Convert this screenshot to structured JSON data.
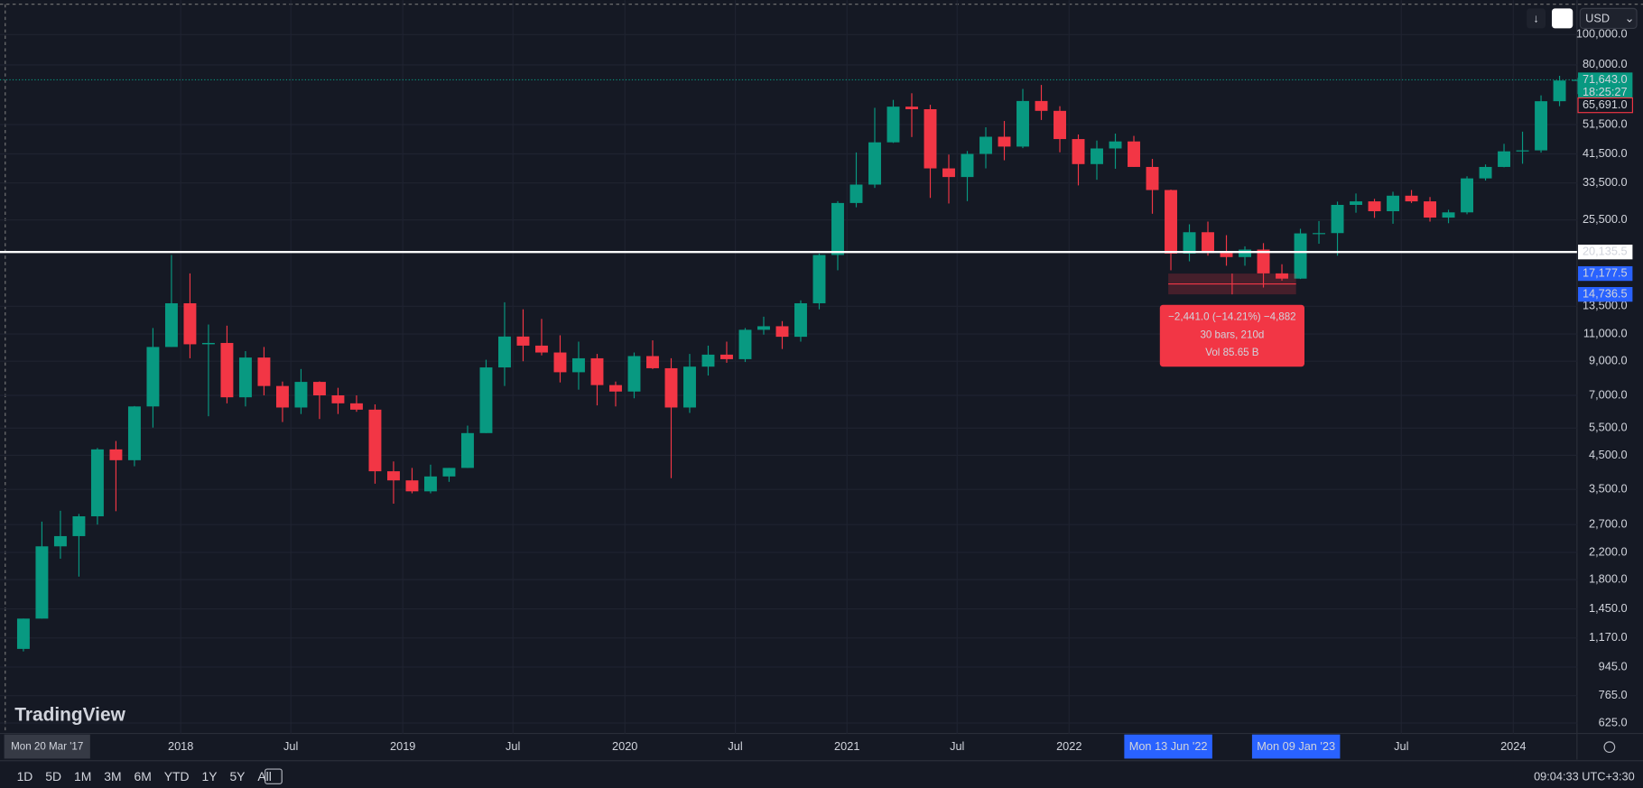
{
  "chart_data": {
    "type": "candlestick",
    "log_scale": true,
    "grid": true,
    "up_color": "#089981",
    "down_color": "#f23645",
    "x": [
      "2017-04",
      "2017-05",
      "2017-06",
      "2017-07",
      "2017-08",
      "2017-09",
      "2017-10",
      "2017-11",
      "2017-12",
      "2018-01",
      "2018-02",
      "2018-03",
      "2018-04",
      "2018-05",
      "2018-06",
      "2018-07",
      "2018-08",
      "2018-09",
      "2018-10",
      "2018-11",
      "2018-12",
      "2019-01",
      "2019-02",
      "2019-03",
      "2019-04",
      "2019-05",
      "2019-06",
      "2019-07",
      "2019-08",
      "2019-09",
      "2019-10",
      "2019-11",
      "2019-12",
      "2020-01",
      "2020-02",
      "2020-03",
      "2020-04",
      "2020-05",
      "2020-06",
      "2020-07",
      "2020-08",
      "2020-09",
      "2020-10",
      "2020-11",
      "2020-12",
      "2021-01",
      "2021-02",
      "2021-03",
      "2021-04",
      "2021-05",
      "2021-06",
      "2021-07",
      "2021-08",
      "2021-09",
      "2021-10",
      "2021-11",
      "2021-12",
      "2022-01",
      "2022-02",
      "2022-03",
      "2022-04",
      "2022-05",
      "2022-06",
      "2022-07",
      "2022-08",
      "2022-09",
      "2022-10",
      "2022-11",
      "2022-12",
      "2023-01",
      "2023-02",
      "2023-03",
      "2023-04",
      "2023-05",
      "2023-06",
      "2023-07",
      "2023-08",
      "2023-09",
      "2023-10",
      "2023-11",
      "2023-12",
      "2024-01",
      "2024-02",
      "2024-03",
      "2024-04"
    ],
    "open": [
      1080,
      1350,
      2300,
      2480,
      2870,
      4700,
      4340,
      6450,
      10000,
      13800,
      10200,
      10300,
      6900,
      9250,
      7500,
      6400,
      7730,
      7000,
      6600,
      6300,
      4000,
      3740,
      3450,
      3850,
      4100,
      5300,
      8600,
      10800,
      10100,
      9600,
      8300,
      9200,
      7550,
      7200,
      9350,
      8550,
      6400,
      8650,
      9450,
      9140,
      11350,
      11650,
      10780,
      13800,
      19700,
      28900,
      33100,
      45200,
      58800,
      57700,
      37300,
      35000,
      41500,
      47100,
      43800,
      61300,
      57000,
      46300,
      38500,
      43200,
      45500,
      37700,
      31800,
      19900,
      23300,
      20000,
      19400,
      20500,
      17200,
      16550,
      23100,
      23150,
      28500,
      29250,
      27200,
      30500,
      29250,
      25950,
      26970,
      34650,
      37700,
      42300,
      42600,
      61200,
      71300
    ],
    "high": [
      1350,
      2760,
      2990,
      2920,
      4750,
      5000,
      6470,
      11500,
      19700,
      17200,
      11800,
      11700,
      9700,
      10000,
      7750,
      8500,
      7760,
      7400,
      7000,
      6550,
      4300,
      4100,
      4200,
      4100,
      5600,
      9100,
      13900,
      13200,
      12300,
      10900,
      10400,
      9500,
      7750,
      9600,
      10500,
      9200,
      9500,
      10100,
      10400,
      11500,
      12500,
      12100,
      14100,
      19900,
      29300,
      41950,
      58300,
      61800,
      64900,
      59600,
      41300,
      42400,
      50500,
      52900,
      67000,
      69000,
      59000,
      47900,
      45800,
      48200,
      47400,
      40000,
      31900,
      24700,
      25200,
      22800,
      21000,
      21500,
      18400,
      23900,
      25300,
      29200,
      31000,
      29800,
      31400,
      31800,
      30200,
      27500,
      35200,
      38400,
      44700,
      48900,
      63900,
      73800,
      72700
    ],
    "low": [
      1060,
      1350,
      2100,
      1840,
      2700,
      2980,
      4150,
      5520,
      10000,
      9200,
      6000,
      6600,
      6450,
      7000,
      5750,
      6100,
      5880,
      6100,
      6200,
      3650,
      3150,
      3400,
      3400,
      3700,
      4100,
      5300,
      7500,
      9000,
      9400,
      7700,
      7300,
      6500,
      6450,
      6850,
      8500,
      3800,
      6150,
      8100,
      8900,
      8950,
      10950,
      9850,
      10400,
      13200,
      17600,
      28000,
      32300,
      45000,
      47000,
      30000,
      28800,
      29300,
      37300,
      39600,
      43300,
      53300,
      42000,
      32900,
      34300,
      37200,
      37700,
      26700,
      17600,
      18800,
      19600,
      18200,
      18200,
      15500,
      16300,
      16500,
      21400,
      19600,
      26900,
      25900,
      24800,
      28900,
      25200,
      24900,
      26600,
      34100,
      37600,
      38600,
      41900,
      59000,
      64500
    ],
    "close": [
      1350,
      2300,
      2480,
      2870,
      4700,
      4340,
      6450,
      10000,
      13800,
      10200,
      10300,
      6900,
      9250,
      7500,
      6400,
      7730,
      7000,
      6600,
      6300,
      4000,
      3740,
      3450,
      3850,
      4100,
      5300,
      8600,
      10800,
      10100,
      9600,
      8300,
      9200,
      7550,
      7200,
      9350,
      8550,
      6400,
      8650,
      9450,
      9140,
      11350,
      11650,
      10780,
      13800,
      19700,
      28900,
      33100,
      45200,
      58800,
      57700,
      37300,
      35000,
      41500,
      47100,
      43800,
      61300,
      57000,
      46300,
      38500,
      43200,
      45500,
      37700,
      31800,
      19900,
      23300,
      20000,
      19400,
      20500,
      17200,
      16550,
      23100,
      23150,
      28500,
      29250,
      27200,
      30500,
      29250,
      25950,
      26970,
      34650,
      37700,
      42300,
      42600,
      61200,
      71300,
      71643
    ],
    "xlim": [
      "2017-03-10",
      "2024-04-15"
    ],
    "xticks": [
      {
        "value": "2018-01-01",
        "label": "2018"
      },
      {
        "value": "2018-07-01",
        "label": "Jul"
      },
      {
        "value": "2019-01-01",
        "label": "2019"
      },
      {
        "value": "2019-07-01",
        "label": "Jul"
      },
      {
        "value": "2020-01-01",
        "label": "2020"
      },
      {
        "value": "2020-07-01",
        "label": "Jul"
      },
      {
        "value": "2021-01-01",
        "label": "2021"
      },
      {
        "value": "2021-07-01",
        "label": "Jul"
      },
      {
        "value": "2022-01-01",
        "label": "2022"
      },
      {
        "value": "2023-07-01",
        "label": "Jul"
      },
      {
        "value": "2024-01-01",
        "label": "2024"
      }
    ],
    "ylim": [
      579,
      129000
    ],
    "yticks": [
      {
        "value": 100000,
        "label": "100,000.0"
      },
      {
        "value": 80000,
        "label": "80,000.0"
      },
      {
        "value": 51500,
        "label": "51,500.0"
      },
      {
        "value": 41500,
        "label": "41,500.0"
      },
      {
        "value": 33500,
        "label": "33,500.0"
      },
      {
        "value": 25500,
        "label": "25,500.0"
      },
      {
        "value": 13500,
        "label": "13,500.0"
      },
      {
        "value": 11000,
        "label": "11,000.0"
      },
      {
        "value": 9000,
        "label": "9,000.0"
      },
      {
        "value": 7000,
        "label": "7,000.0"
      },
      {
        "value": 5500,
        "label": "5,500.0"
      },
      {
        "value": 4500,
        "label": "4,500.0"
      },
      {
        "value": 3500,
        "label": "3,500.0"
      },
      {
        "value": 2700,
        "label": "2,700.0"
      },
      {
        "value": 2200,
        "label": "2,200.0"
      },
      {
        "value": 1800,
        "label": "1,800.0"
      },
      {
        "value": 1450,
        "label": "1,450.0"
      },
      {
        "value": 1170,
        "label": "1,170.0"
      },
      {
        "value": 945,
        "label": "945.0"
      },
      {
        "value": 765,
        "label": "765.0"
      },
      {
        "value": 625,
        "label": "625.0"
      }
    ],
    "horizontal_line": {
      "value": 20135.5,
      "label": "20,135.5"
    },
    "last_price": {
      "value": 71643,
      "label": "71,643.0",
      "countdown": "18:25:27"
    },
    "prev_price": {
      "value": 65691,
      "label": "65,691.0"
    },
    "crosshair_x": {
      "value": "2017-03-20",
      "label": "Mon 20 Mar '17"
    },
    "measure": {
      "from": {
        "value": 17177.5,
        "label": "17,177.5"
      },
      "to": {
        "value": 14736.5,
        "label": "14,736.5"
      },
      "x_start": {
        "value": "2022-06-13",
        "label": "Mon 13 Jun '22"
      },
      "x_end": {
        "value": "2023-01-09",
        "label": "Mon 09 Jan '23"
      },
      "lines": [
        "−2,441.0 (−14.21%) −4,882",
        "30 bars, 210d",
        "Vol 85.65 B"
      ]
    }
  },
  "currency": "USD",
  "logo": "TradingView",
  "toolbar": {
    "intervals": [
      "1D",
      "5D",
      "1M",
      "3M",
      "6M",
      "YTD",
      "1Y",
      "5Y",
      "All"
    ],
    "clock": "09:04:33 UTC+3:30"
  }
}
